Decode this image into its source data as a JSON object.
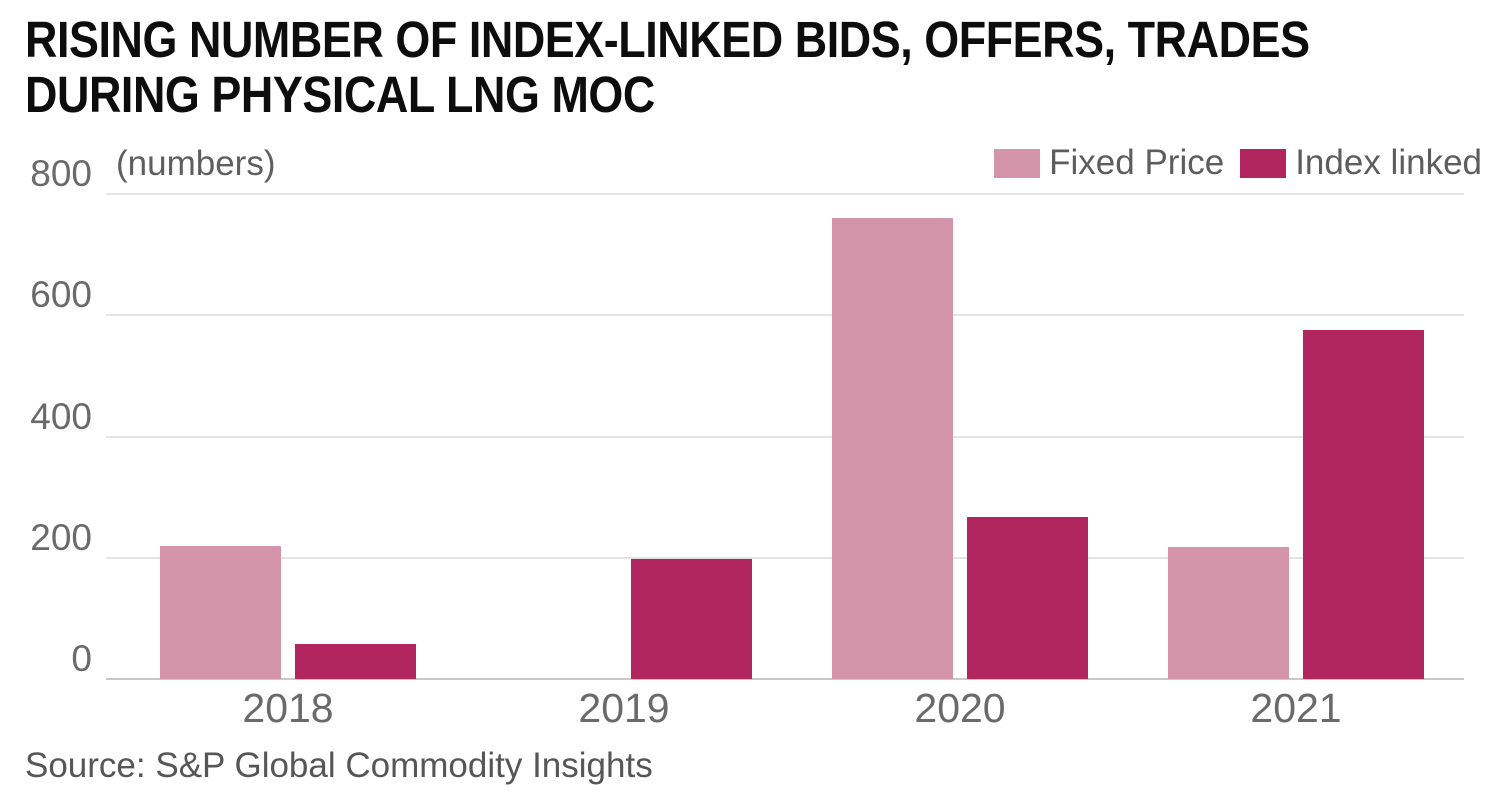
{
  "title": {
    "line1": "RISING NUMBER OF INDEX-LINKED BIDS, OFFERS, TRADES",
    "line2": "DURING PHYSICAL LNG MOC"
  },
  "unit_label": "(numbers)",
  "legend": {
    "items": [
      {
        "label": "Fixed Price",
        "color": "#d494aa"
      },
      {
        "label": "Index linked",
        "color": "#b1265f"
      }
    ]
  },
  "source": "Source: S&P Global Commodity Insights",
  "colors": {
    "title_text": "#0d0d0d",
    "axis_text": "#6a6a6a",
    "muted_text": "#5d5d5d",
    "gridline": "#e4e4e4",
    "axis_line": "#c8c8c8",
    "fixed_price": "#d494aa",
    "index_linked": "#b1265f",
    "background": "#ffffff"
  },
  "chart_data": {
    "type": "bar",
    "title": "RISING NUMBER OF INDEX-LINKED BIDS, OFFERS, TRADES DURING PHYSICAL LNG MOC",
    "ylabel": "(numbers)",
    "xlabel": "",
    "categories": [
      "2018",
      "2019",
      "2020",
      "2021"
    ],
    "series": [
      {
        "name": "Fixed Price",
        "color": "#d494aa",
        "values": [
          220,
          0,
          760,
          218
        ]
      },
      {
        "name": "Index linked",
        "color": "#b1265f",
        "values": [
          58,
          198,
          268,
          575
        ]
      }
    ],
    "yticks": [
      0,
      200,
      400,
      600,
      800
    ],
    "ylim": [
      0,
      800
    ],
    "grid": true,
    "legend_position": "top-right"
  }
}
